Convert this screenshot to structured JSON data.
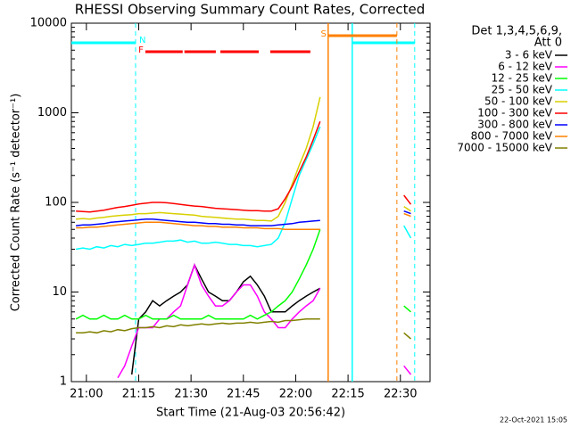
{
  "chart_data": {
    "type": "line",
    "title": "RHESSI Observing Summary Count Rates, Corrected",
    "x_label": "Start Time (21-Aug-03 20:56:42)",
    "y_label": "Corrected Count Rate (s⁻¹ detector⁻¹)",
    "legend_header": [
      "Det 1,3,4,5,6,9,",
      "Att 0"
    ],
    "footer": "22-Oct-2021 15:05",
    "log_y": true,
    "legend": "right",
    "xlim": [
      1255.7,
      1358.5
    ],
    "xticks": [
      {
        "value": 1260,
        "label": "21:00"
      },
      {
        "value": 1275,
        "label": "21:15"
      },
      {
        "value": 1290,
        "label": "21:30"
      },
      {
        "value": 1305,
        "label": "21:45"
      },
      {
        "value": 1320,
        "label": "22:00"
      },
      {
        "value": 1335,
        "label": "22:15"
      },
      {
        "value": 1350,
        "label": "22:30"
      }
    ],
    "ylim": [
      1,
      10000
    ],
    "yticks": [
      1,
      10,
      100,
      1000,
      10000
    ],
    "x": [
      1257,
      1259,
      1261,
      1263,
      1265,
      1267,
      1269,
      1271,
      1273,
      1275,
      1277,
      1279,
      1281,
      1283,
      1285,
      1287,
      1289,
      1291,
      1293,
      1295,
      1297,
      1299,
      1301,
      1303,
      1305,
      1307,
      1309,
      1311,
      1313,
      1315,
      1317,
      1319,
      1321,
      1323,
      1325,
      1327,
      1340,
      1351,
      1353
    ],
    "series": [
      {
        "name": "3 - 6 keV",
        "color": "#000000",
        "values": [
          null,
          null,
          null,
          null,
          null,
          null,
          null,
          null,
          1.2,
          5,
          6,
          8,
          7,
          8,
          9,
          10,
          12,
          20,
          14,
          10,
          9,
          8,
          8,
          10,
          13,
          15,
          12,
          9,
          6,
          6,
          6,
          7,
          8,
          9,
          10,
          11,
          null,
          null,
          null
        ]
      },
      {
        "name": "6 - 12 keV",
        "color": "#ff00ff",
        "values": [
          null,
          null,
          null,
          null,
          null,
          null,
          1.1,
          1.5,
          2.5,
          4,
          4,
          4,
          5,
          5,
          6,
          7,
          12,
          20,
          12,
          9,
          7,
          7,
          8,
          10,
          12,
          12,
          9,
          6,
          5,
          4,
          4,
          5,
          6,
          7,
          8,
          11,
          null,
          1.5,
          1.2
        ]
      },
      {
        "name": "12 - 25 keV",
        "color": "#00ff00",
        "values": [
          5,
          5.5,
          5,
          5,
          5.5,
          5,
          5,
          5.5,
          5,
          5,
          5.5,
          5,
          5,
          5,
          5.5,
          5,
          5,
          5,
          5,
          5.5,
          5,
          5,
          5,
          5,
          5,
          5.5,
          5,
          5.5,
          6,
          7,
          8,
          10,
          14,
          20,
          30,
          50,
          null,
          7,
          6
        ]
      },
      {
        "name": "25 - 50 keV",
        "color": "#00ffff",
        "values": [
          30,
          31,
          30,
          32,
          31,
          33,
          32,
          34,
          33,
          34,
          35,
          35,
          36,
          37,
          37,
          38,
          36,
          37,
          35,
          35,
          36,
          35,
          34,
          34,
          33,
          33,
          32,
          33,
          34,
          40,
          60,
          110,
          200,
          300,
          450,
          700,
          null,
          55,
          40
        ]
      },
      {
        "name": "50 - 100 keV",
        "color": "#d8d000",
        "values": [
          65,
          66,
          65,
          67,
          68,
          70,
          71,
          72,
          73,
          75,
          75,
          76,
          77,
          76,
          75,
          74,
          73,
          72,
          70,
          69,
          68,
          67,
          66,
          65,
          65,
          64,
          63,
          63,
          62,
          70,
          100,
          160,
          260,
          400,
          700,
          1500,
          null,
          90,
          80
        ]
      },
      {
        "name": "100 - 300 keV",
        "color": "#ff0000",
        "values": [
          80,
          79,
          78,
          80,
          82,
          85,
          88,
          90,
          93,
          96,
          98,
          100,
          100,
          99,
          97,
          95,
          93,
          91,
          90,
          88,
          86,
          85,
          84,
          83,
          82,
          81,
          81,
          80,
          80,
          85,
          110,
          150,
          220,
          320,
          500,
          800,
          null,
          120,
          95
        ]
      },
      {
        "name": "300 - 800 keV",
        "color": "#0000ff",
        "values": [
          55,
          56,
          56,
          57,
          58,
          60,
          61,
          62,
          63,
          64,
          65,
          65,
          64,
          63,
          62,
          61,
          60,
          60,
          59,
          58,
          58,
          57,
          57,
          56,
          56,
          55,
          55,
          55,
          55,
          56,
          57,
          58,
          60,
          61,
          62,
          63,
          null,
          80,
          75
        ]
      },
      {
        "name": "800 - 7000 keV",
        "color": "#ff8000",
        "values": [
          52,
          52,
          53,
          53,
          54,
          55,
          56,
          57,
          58,
          59,
          60,
          60,
          60,
          59,
          58,
          57,
          56,
          55,
          55,
          54,
          54,
          53,
          53,
          53,
          52,
          52,
          52,
          51,
          51,
          51,
          50,
          50,
          50,
          50,
          50,
          50,
          null,
          75,
          70
        ]
      },
      {
        "name": "7000 - 15000 keV",
        "color": "#808000",
        "values": [
          3.5,
          3.5,
          3.6,
          3.5,
          3.7,
          3.6,
          3.8,
          3.7,
          3.9,
          4,
          4,
          4.1,
          4,
          4.2,
          4.1,
          4.3,
          4.2,
          4.3,
          4.4,
          4.3,
          4.4,
          4.5,
          4.4,
          4.5,
          4.5,
          4.6,
          4.5,
          4.6,
          4.7,
          4.6,
          4.8,
          4.8,
          4.9,
          5,
          5,
          5,
          null,
          3.5,
          3
        ]
      }
    ],
    "flags": [
      {
        "label": "N",
        "color": "#00ffff",
        "intervals": [
          [
            1255.7,
            1274.1
          ],
          [
            1336.2,
            1354.1
          ]
        ]
      },
      {
        "label": "F",
        "color": "#ff0000",
        "intervals": [
          [
            1276.9,
            1287.6
          ],
          [
            1288.1,
            1297.1
          ],
          [
            1298.4,
            1309.4
          ],
          [
            1312.7,
            1324.2
          ]
        ]
      },
      {
        "label": "S",
        "color": "#ff8000",
        "intervals": [
          [
            1329.3,
            1349
          ]
        ]
      }
    ]
  }
}
